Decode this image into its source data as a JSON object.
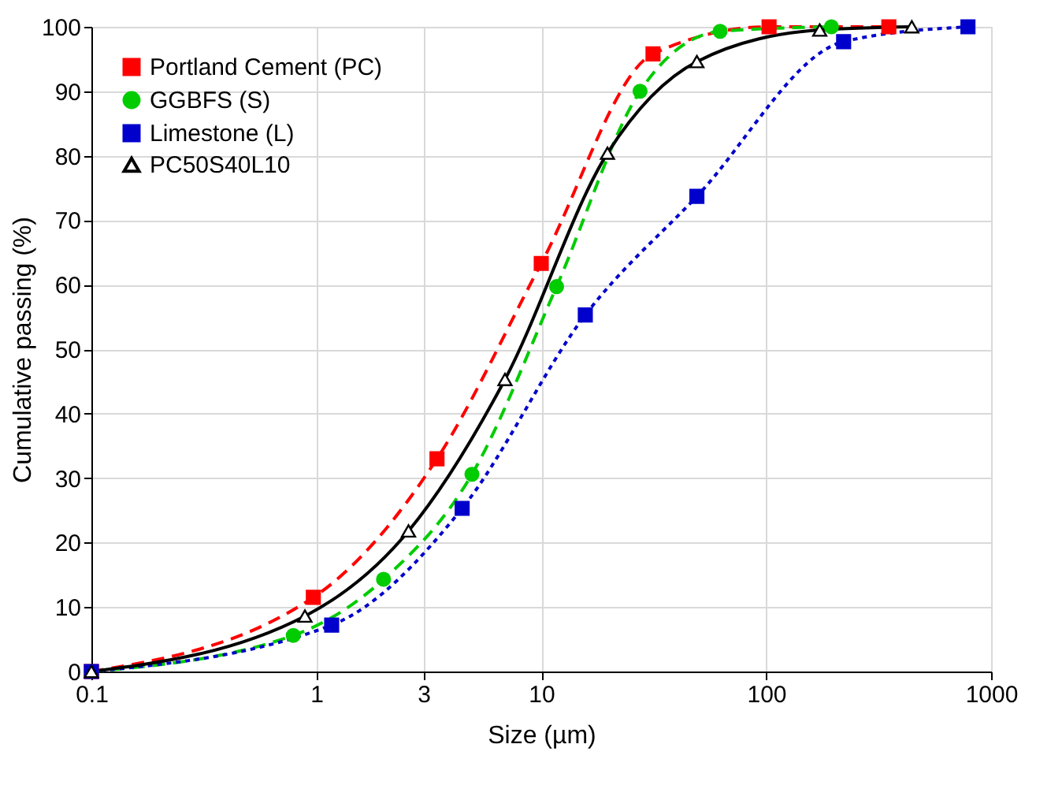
{
  "chart_data": {
    "type": "line",
    "xlabel": "Size (µm)",
    "ylabel": "Cumulative passing (%)",
    "log": "x",
    "xlim": [
      0.1,
      1000
    ],
    "xticks": [
      0.1,
      1,
      3,
      10,
      100,
      1000
    ],
    "ylim": [
      0,
      100
    ],
    "yticks": [
      0,
      10,
      20,
      30,
      40,
      50,
      60,
      70,
      80,
      90,
      100
    ],
    "grid": true,
    "legend": "top left",
    "series": [
      {
        "name": "Portland Cement (PC)",
        "color": "#ff0000",
        "line_style": "dashed",
        "marker": "square",
        "x": [
          0.1,
          0.97,
          3.44,
          10,
          31.4,
          103,
          351
        ],
        "values": [
          0,
          11.5,
          33,
          63.3,
          95.8,
          100,
          100
        ]
      },
      {
        "name": "GGBFS (S)",
        "color": "#00cc00",
        "line_style": "dashed",
        "marker": "circle",
        "x": [
          0.1,
          0.79,
          1.99,
          4.92,
          11.7,
          27.5,
          62.4,
          195
        ],
        "values": [
          0,
          5.6,
          14.3,
          30.6,
          59.7,
          90,
          99.3,
          100
        ]
      },
      {
        "name": "Limestone (L)",
        "color": "#0000cc",
        "line_style": "dotted",
        "marker": "square",
        "x": [
          0.1,
          1.17,
          4.45,
          15.7,
          49.2,
          221,
          789
        ],
        "values": [
          0,
          7.2,
          25.3,
          55.3,
          73.7,
          97.7,
          100
        ]
      },
      {
        "name": "PC50S40L10",
        "color": "#000000",
        "line_style": "solid",
        "marker": "triangle",
        "x": [
          0.1,
          0.89,
          2.57,
          6.9,
          19.7,
          49.2,
          173,
          444
        ],
        "values": [
          0,
          8.6,
          21.8,
          45.3,
          80.4,
          94.6,
          99.5,
          100
        ]
      }
    ]
  }
}
